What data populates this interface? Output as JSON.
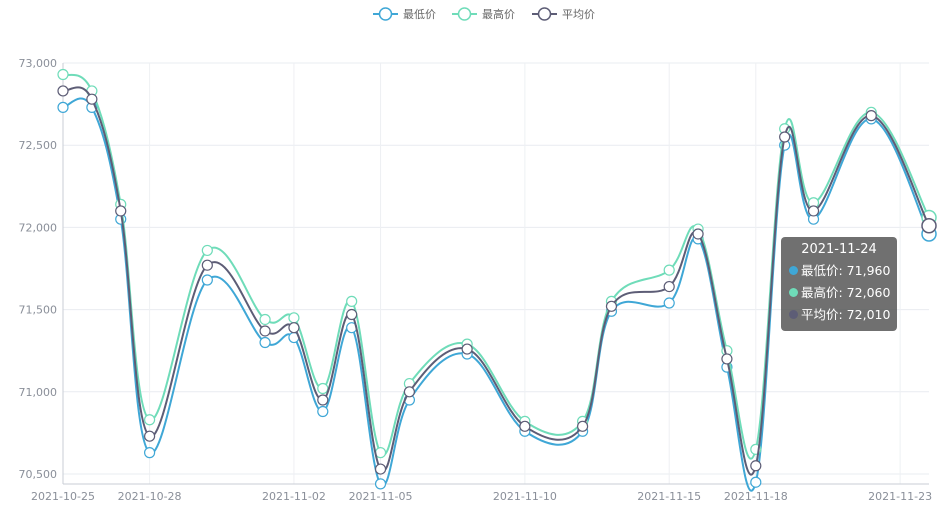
{
  "chart_data": {
    "type": "line",
    "x": [
      "2021-10-25",
      "2021-10-26",
      "2021-10-27",
      "2021-10-28",
      "2021-10-29",
      "2021-10-30",
      "2021-10-31",
      "2021-11-01",
      "2021-11-02",
      "2021-11-03",
      "2021-11-04",
      "2021-11-05",
      "2021-11-06",
      "2021-11-07",
      "2021-11-08",
      "2021-11-09",
      "2021-11-10",
      "2021-11-11",
      "2021-11-12",
      "2021-11-13",
      "2021-11-14",
      "2021-11-15",
      "2021-11-16",
      "2021-11-17",
      "2021-11-18",
      "2021-11-19",
      "2021-11-20",
      "2021-11-21",
      "2021-11-22",
      "2021-11-23",
      "2021-11-24"
    ],
    "x_tick_labels": [
      "2021-10-25",
      "2021-10-28",
      "2021-11-02",
      "2021-11-05",
      "2021-11-10",
      "2021-11-15",
      "2021-11-18",
      "2021-11-23"
    ],
    "x_tick_dates": [
      "2021-10-25",
      "2021-10-28",
      "2021-11-02",
      "2021-11-05",
      "2021-11-10",
      "2021-11-15",
      "2021-11-18",
      "2021-11-23"
    ],
    "ylim": [
      70500,
      73000
    ],
    "y_ticks": [
      70500,
      71000,
      71500,
      72000,
      72500,
      73000
    ],
    "y_tick_labels": [
      "70,500",
      "71,000",
      "71,500",
      "72,000",
      "72,500",
      "73,000"
    ],
    "grid": true,
    "legend_position": "top-center",
    "series": [
      {
        "name": "最低价",
        "color": "#3fa7d6",
        "points": [
          [
            "2021-10-25",
            72730
          ],
          [
            "2021-10-26",
            72730
          ],
          [
            "2021-10-27",
            72050
          ],
          [
            "2021-10-28",
            70630
          ],
          [
            "2021-10-30",
            71680
          ],
          [
            "2021-11-01",
            71300
          ],
          [
            "2021-11-02",
            71330
          ],
          [
            "2021-11-03",
            70880
          ],
          [
            "2021-11-04",
            71390
          ],
          [
            "2021-11-05",
            70440
          ],
          [
            "2021-11-06",
            70950
          ],
          [
            "2021-11-08",
            71230
          ],
          [
            "2021-11-10",
            70760
          ],
          [
            "2021-11-12",
            70760
          ],
          [
            "2021-11-13",
            71490
          ],
          [
            "2021-11-15",
            71540
          ],
          [
            "2021-11-16",
            71930
          ],
          [
            "2021-11-17",
            71150
          ],
          [
            "2021-11-18",
            70450
          ],
          [
            "2021-11-19",
            72500
          ],
          [
            "2021-11-20",
            72050
          ],
          [
            "2021-11-22",
            72660
          ],
          [
            "2021-11-24",
            71960
          ]
        ]
      },
      {
        "name": "最高价",
        "color": "#6fdcb9",
        "points": [
          [
            "2021-10-25",
            72930
          ],
          [
            "2021-10-26",
            72830
          ],
          [
            "2021-10-27",
            72140
          ],
          [
            "2021-10-28",
            70830
          ],
          [
            "2021-10-30",
            71860
          ],
          [
            "2021-11-01",
            71440
          ],
          [
            "2021-11-02",
            71450
          ],
          [
            "2021-11-03",
            71020
          ],
          [
            "2021-11-04",
            71550
          ],
          [
            "2021-11-05",
            70630
          ],
          [
            "2021-11-06",
            71050
          ],
          [
            "2021-11-08",
            71290
          ],
          [
            "2021-11-10",
            70820
          ],
          [
            "2021-11-12",
            70820
          ],
          [
            "2021-11-13",
            71550
          ],
          [
            "2021-11-15",
            71740
          ],
          [
            "2021-11-16",
            71990
          ],
          [
            "2021-11-17",
            71250
          ],
          [
            "2021-11-18",
            70650
          ],
          [
            "2021-11-19",
            72600
          ],
          [
            "2021-11-20",
            72150
          ],
          [
            "2021-11-22",
            72700
          ],
          [
            "2021-11-24",
            72060
          ]
        ]
      },
      {
        "name": "平均价",
        "color": "#5d5d76",
        "points": [
          [
            "2021-10-25",
            72830
          ],
          [
            "2021-10-26",
            72780
          ],
          [
            "2021-10-27",
            72100
          ],
          [
            "2021-10-28",
            70730
          ],
          [
            "2021-10-30",
            71770
          ],
          [
            "2021-11-01",
            71370
          ],
          [
            "2021-11-02",
            71390
          ],
          [
            "2021-11-03",
            70950
          ],
          [
            "2021-11-04",
            71470
          ],
          [
            "2021-11-05",
            70530
          ],
          [
            "2021-11-06",
            71000
          ],
          [
            "2021-11-08",
            71260
          ],
          [
            "2021-11-10",
            70790
          ],
          [
            "2021-11-12",
            70790
          ],
          [
            "2021-11-13",
            71520
          ],
          [
            "2021-11-15",
            71640
          ],
          [
            "2021-11-16",
            71960
          ],
          [
            "2021-11-17",
            71200
          ],
          [
            "2021-11-18",
            70550
          ],
          [
            "2021-11-19",
            72550
          ],
          [
            "2021-11-20",
            72100
          ],
          [
            "2021-11-22",
            72680
          ],
          [
            "2021-11-24",
            72010
          ]
        ]
      }
    ],
    "tooltip": {
      "date": "2021-11-24",
      "rows": [
        {
          "text": "最低价: 71,960",
          "color": "#3fa7d6"
        },
        {
          "text": "最高价: 72,060",
          "color": "#6fdcb9"
        },
        {
          "text": "平均价: 72,010",
          "color": "#5d5d76"
        }
      ]
    }
  }
}
